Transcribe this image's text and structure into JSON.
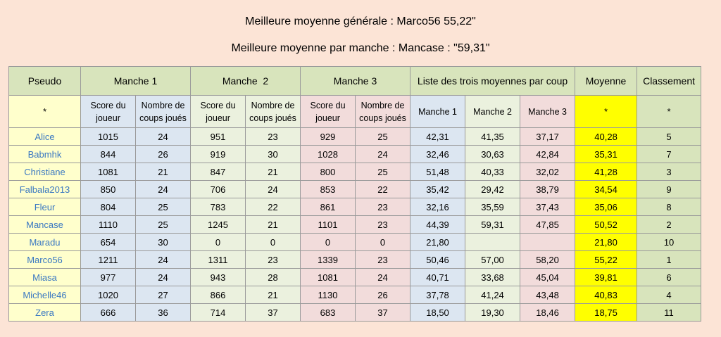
{
  "titles": {
    "best_overall": "Meilleure moyenne générale : Marco56 55,22\"",
    "best_round": "Meilleure moyenne par manche : Mancase : \"59,31\""
  },
  "header": {
    "pseudo": "Pseudo",
    "manche1": "Manche 1",
    "manche2": "Manche  2",
    "manche3": "Manche 3",
    "liste": "Liste des trois moyennes par coup",
    "moyenne": "Moyenne",
    "classement": "Classement"
  },
  "subheader": {
    "star": "*",
    "score": "Score du joueur",
    "coups": "Nombre de coups joués",
    "m1": "Manche 1",
    "m2": "Manche 2",
    "m3": "Manche 3"
  },
  "rows": [
    {
      "pseudo": "Alice",
      "s1": "1015",
      "c1": "24",
      "s2": "951",
      "c2": "23",
      "s3": "929",
      "c3": "25",
      "a1": "42,31",
      "a2": "41,35",
      "a3": "37,17",
      "moy": "40,28",
      "rank": "5"
    },
    {
      "pseudo": "Babmhk",
      "s1": "844",
      "c1": "26",
      "s2": "919",
      "c2": "30",
      "s3": "1028",
      "c3": "24",
      "a1": "32,46",
      "a2": "30,63",
      "a3": "42,84",
      "moy": "35,31",
      "rank": "7"
    },
    {
      "pseudo": "Christiane",
      "s1": "1081",
      "c1": "21",
      "s2": "847",
      "c2": "21",
      "s3": "800",
      "c3": "25",
      "a1": "51,48",
      "a2": "40,33",
      "a3": "32,02",
      "moy": "41,28",
      "rank": "3"
    },
    {
      "pseudo": "Falbala2013",
      "s1": "850",
      "c1": "24",
      "s2": "706",
      "c2": "24",
      "s3": "853",
      "c3": "22",
      "a1": "35,42",
      "a2": "29,42",
      "a3": "38,79",
      "moy": "34,54",
      "rank": "9"
    },
    {
      "pseudo": "Fleur",
      "s1": "804",
      "c1": "25",
      "s2": "783",
      "c2": "22",
      "s3": "861",
      "c3": "23",
      "a1": "32,16",
      "a2": "35,59",
      "a3": "37,43",
      "moy": "35,06",
      "rank": "8"
    },
    {
      "pseudo": "Mancase",
      "s1": "1110",
      "c1": "25",
      "s2": "1245",
      "c2": "21",
      "s3": "1101",
      "c3": "23",
      "a1": "44,39",
      "a2": "59,31",
      "a3": "47,85",
      "moy": "50,52",
      "rank": "2"
    },
    {
      "pseudo": "Maradu",
      "s1": "654",
      "c1": "30",
      "s2": "0",
      "c2": "0",
      "s3": "0",
      "c3": "0",
      "a1": "21,80",
      "a2": "",
      "a3": "",
      "moy": "21,80",
      "rank": "10"
    },
    {
      "pseudo": "Marco56",
      "s1": "1211",
      "c1": "24",
      "s2": "1311",
      "c2": "23",
      "s3": "1339",
      "c3": "23",
      "a1": "50,46",
      "a2": "57,00",
      "a3": "58,20",
      "moy": "55,22",
      "rank": "1"
    },
    {
      "pseudo": "Miasa",
      "s1": "977",
      "c1": "24",
      "s2": "943",
      "c2": "28",
      "s3": "1081",
      "c3": "24",
      "a1": "40,71",
      "a2": "33,68",
      "a3": "45,04",
      "moy": "39,81",
      "rank": "6"
    },
    {
      "pseudo": "Michelle46",
      "s1": "1020",
      "c1": "27",
      "s2": "866",
      "c2": "21",
      "s3": "1130",
      "c3": "26",
      "a1": "37,78",
      "a2": "41,24",
      "a3": "43,48",
      "moy": "40,83",
      "rank": "4"
    },
    {
      "pseudo": "Zera",
      "s1": "666",
      "c1": "36",
      "s2": "714",
      "c2": "37",
      "s3": "683",
      "c3": "37",
      "a1": "18,50",
      "a2": "19,30",
      "a3": "18,46",
      "moy": "18,75",
      "rank": "11"
    }
  ],
  "bold_cells": [
    "2.a1",
    "5.a2",
    "7.a3"
  ]
}
